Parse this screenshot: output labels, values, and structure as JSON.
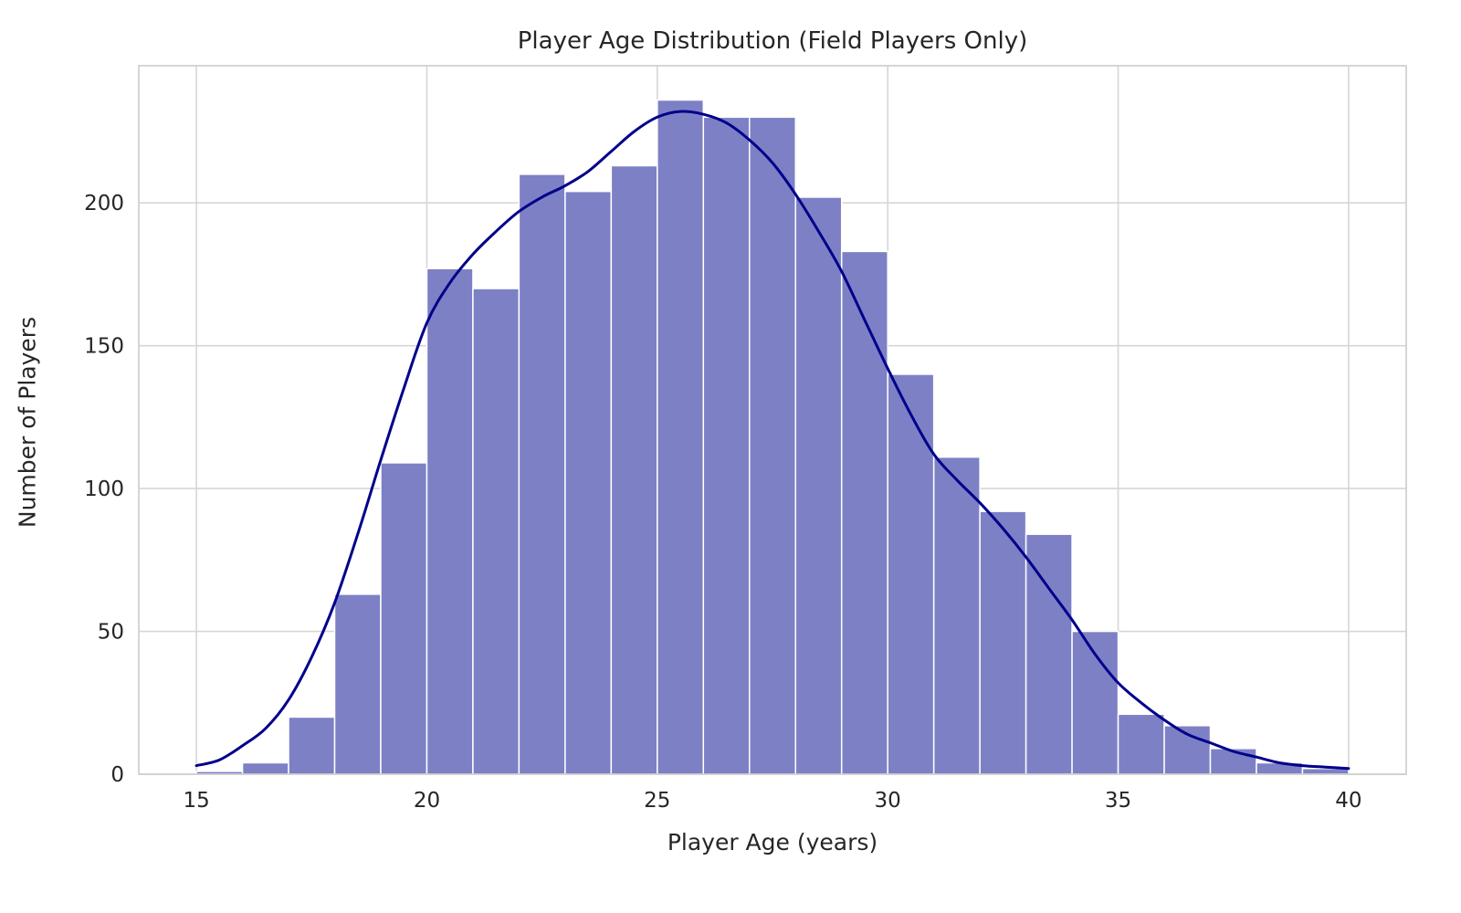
{
  "chart_data": {
    "type": "histogram",
    "title": "Player Age Distribution (Field Players Only)",
    "xlabel": "Player Age (years)",
    "ylabel": "Number of Players",
    "bin_start": 15,
    "bin_width": 1,
    "bin_counts": [
      1,
      4,
      20,
      63,
      109,
      177,
      170,
      210,
      204,
      213,
      236,
      230,
      230,
      202,
      183,
      140,
      111,
      92,
      84,
      50,
      21,
      17,
      9,
      4,
      2
    ],
    "kde_points": [
      [
        15,
        3
      ],
      [
        15.5,
        5
      ],
      [
        16,
        10
      ],
      [
        16.5,
        16
      ],
      [
        17,
        26
      ],
      [
        17.5,
        41
      ],
      [
        18,
        60
      ],
      [
        18.5,
        84
      ],
      [
        19,
        110
      ],
      [
        19.5,
        135
      ],
      [
        20,
        158
      ],
      [
        20.5,
        172
      ],
      [
        21,
        182
      ],
      [
        21.5,
        190
      ],
      [
        22,
        197
      ],
      [
        22.5,
        202
      ],
      [
        23,
        206
      ],
      [
        23.5,
        211
      ],
      [
        24,
        218
      ],
      [
        24.5,
        225
      ],
      [
        25,
        230
      ],
      [
        25.5,
        232
      ],
      [
        26,
        231
      ],
      [
        26.5,
        228
      ],
      [
        27,
        222
      ],
      [
        27.5,
        214
      ],
      [
        28,
        203
      ],
      [
        28.5,
        190
      ],
      [
        29,
        176
      ],
      [
        29.5,
        159
      ],
      [
        30,
        142
      ],
      [
        30.5,
        126
      ],
      [
        31,
        112
      ],
      [
        31.5,
        103
      ],
      [
        32,
        95
      ],
      [
        32.5,
        86
      ],
      [
        33,
        76
      ],
      [
        33.5,
        65
      ],
      [
        34,
        54
      ],
      [
        34.5,
        42
      ],
      [
        35,
        32
      ],
      [
        35.5,
        25
      ],
      [
        36,
        19
      ],
      [
        36.5,
        14
      ],
      [
        37,
        11
      ],
      [
        37.5,
        8
      ],
      [
        38,
        6
      ],
      [
        38.5,
        4
      ],
      [
        39,
        3
      ],
      [
        39.5,
        2.5
      ],
      [
        40,
        2
      ]
    ],
    "xticks": [
      15,
      20,
      25,
      30,
      35,
      40
    ],
    "yticks": [
      0,
      50,
      100,
      150,
      200
    ],
    "xlim": [
      13.75,
      41.25
    ],
    "ylim": [
      0,
      248
    ],
    "grid": true,
    "legend_position": "none",
    "colors": {
      "bar_fill": "#7d80c5",
      "bar_edge": "#ffffff",
      "kde_line": "#00008b",
      "grid_line": "#d6d6d6",
      "spine": "#cccccc",
      "text": "#262626",
      "background": "#ffffff"
    }
  }
}
